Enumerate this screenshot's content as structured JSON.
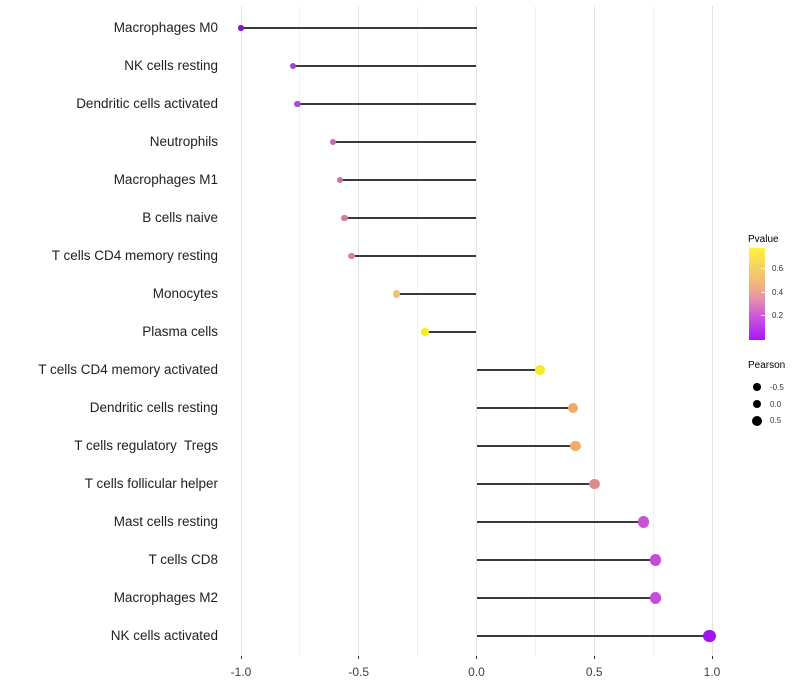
{
  "chart_data": {
    "type": "scatter",
    "style": "lollipop",
    "title": "",
    "xlabel": "",
    "ylabel": "",
    "xlim": [
      -1.15,
      1.1
    ],
    "x_ticks": [
      "-1.0",
      "-0.5",
      "0.0",
      "0.5",
      "1.0"
    ],
    "grid": "vertical-only, minor every 0.25",
    "categories": [
      "Macrophages M0",
      "NK cells resting",
      "Dendritic cells activated",
      "Neutrophils",
      "Macrophages M1",
      "B cells naive",
      "T cells CD4 memory resting",
      "Monocytes",
      "Plasma cells",
      "T cells CD4 memory activated",
      "Dendritic cells resting",
      "T cells regulatory  Tregs",
      "T cells follicular helper",
      "Mast cells resting",
      "T cells CD8",
      "Macrophages M2",
      "NK cells activated"
    ],
    "series": [
      {
        "name": "Pearson",
        "values": [
          -1.0,
          -0.78,
          -0.76,
          -0.61,
          -0.58,
          -0.56,
          -0.53,
          -0.34,
          -0.22,
          0.27,
          0.41,
          0.42,
          0.5,
          0.71,
          0.76,
          0.76,
          0.99
        ]
      }
    ],
    "point_colors": [
      "#7a1ccd",
      "#9b46cf",
      "#a34fd2",
      "#c468b0",
      "#cc73a7",
      "#d17ba1",
      "#d7839b",
      "#eec26e",
      "#f6ee18",
      "#f7e92b",
      "#f0ab66",
      "#f0ab66",
      "#dd8b8b",
      "#c553d4",
      "#c24fdb",
      "#c24fdb",
      "#9e17f0"
    ],
    "stem_color": "#3a3a3a",
    "legends": {
      "pvalue": {
        "title": "Pvalue",
        "tick_labels": [
          "0.6",
          "0.4",
          "0.2"
        ],
        "gradient_top_to_bottom": [
          "#fcf23c",
          "#f3c172",
          "#eead87",
          "#da6fc5",
          "#a816fb"
        ],
        "position": "right"
      },
      "pearson": {
        "title": "Pearson",
        "size_labels": [
          "-0.5",
          "0.0",
          "0.5"
        ],
        "dot_color": "#000000",
        "position": "right"
      }
    }
  }
}
